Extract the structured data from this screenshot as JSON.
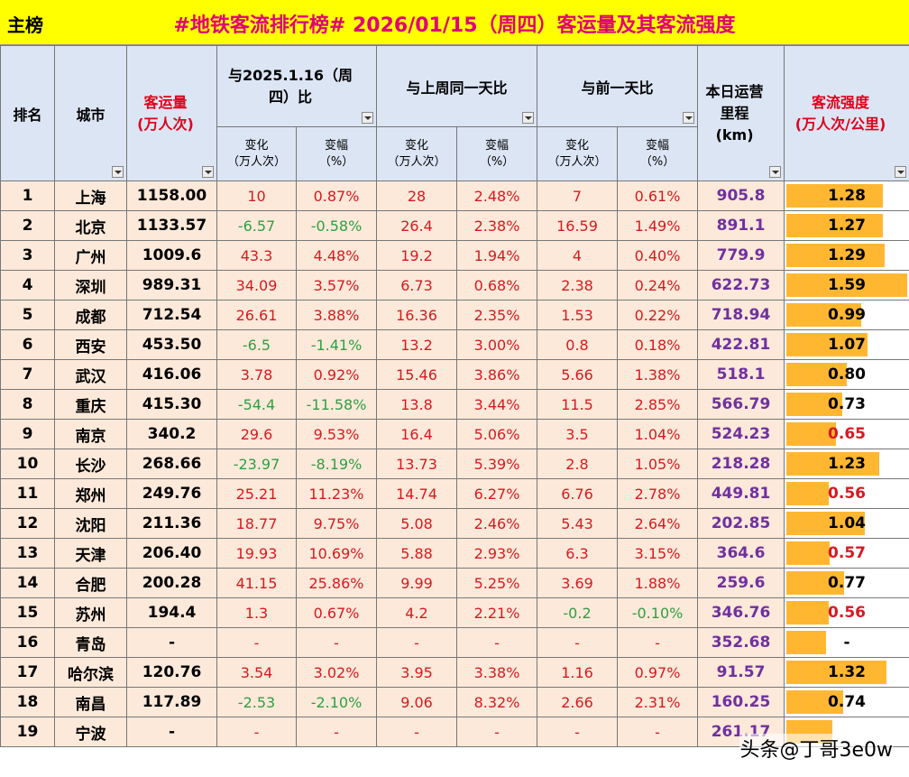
{
  "title_bar": {
    "label": "主榜",
    "title": "#地铁客流排行榜# 2026/01/15（周四）客运量及其客流强度"
  },
  "headers": {
    "rank": "排名",
    "city": "城市",
    "volume": "客运量\n(万人次)",
    "yoy": "与2025.1.16（周四）比",
    "wow": "与上周同一天比",
    "dod": "与前一天比",
    "mileage": "本日运营里程\n(km)",
    "intensity": "客流强度\n(万人次/公里)",
    "change": "变化\n（万人次）",
    "pct": "变幅\n（%）"
  },
  "colors": {
    "positive": "#d71920",
    "negative": "#2f9e44",
    "mileage": "#7030a0",
    "bar": "#ffb732",
    "row_bg": "#fde9d9",
    "header_bg": "#dce5f4",
    "title_bg": "#ffff00"
  },
  "rows": [
    {
      "rank": "1",
      "city": "上海",
      "volume": "1158.00",
      "yoy_chg": "10",
      "yoy_pct": "0.87%",
      "wow_chg": "28",
      "wow_pct": "2.48%",
      "dod_chg": "7",
      "dod_pct": "0.61%",
      "mileage": "905.8",
      "intensity": "1.28",
      "level": 0.8
    },
    {
      "rank": "2",
      "city": "北京",
      "volume": "1133.57",
      "yoy_chg": "-6.57",
      "yoy_pct": "-0.58%",
      "wow_chg": "26.4",
      "wow_pct": "2.38%",
      "dod_chg": "16.59",
      "dod_pct": "1.49%",
      "mileage": "891.1",
      "intensity": "1.27",
      "level": 0.8
    },
    {
      "rank": "3",
      "city": "广州",
      "volume": "1009.6",
      "yoy_chg": "43.3",
      "yoy_pct": "4.48%",
      "wow_chg": "19.2",
      "wow_pct": "1.94%",
      "dod_chg": "4",
      "dod_pct": "0.40%",
      "mileage": "779.9",
      "intensity": "1.29",
      "level": 0.81
    },
    {
      "rank": "4",
      "city": "深圳",
      "volume": "989.31",
      "yoy_chg": "34.09",
      "yoy_pct": "3.57%",
      "wow_chg": "6.73",
      "wow_pct": "0.68%",
      "dod_chg": "2.38",
      "dod_pct": "0.24%",
      "mileage": "622.73",
      "intensity": "1.59",
      "level": 1.0
    },
    {
      "rank": "5",
      "city": "成都",
      "volume": "712.54",
      "yoy_chg": "26.61",
      "yoy_pct": "3.88%",
      "wow_chg": "16.36",
      "wow_pct": "2.35%",
      "dod_chg": "1.53",
      "dod_pct": "0.22%",
      "mileage": "718.94",
      "intensity": "0.99",
      "level": 0.62
    },
    {
      "rank": "6",
      "city": "西安",
      "volume": "453.50",
      "yoy_chg": "-6.5",
      "yoy_pct": "-1.41%",
      "wow_chg": "13.2",
      "wow_pct": "3.00%",
      "dod_chg": "0.8",
      "dod_pct": "0.18%",
      "mileage": "422.81",
      "intensity": "1.07",
      "level": 0.67
    },
    {
      "rank": "7",
      "city": "武汉",
      "volume": "416.06",
      "yoy_chg": "3.78",
      "yoy_pct": "0.92%",
      "wow_chg": "15.46",
      "wow_pct": "3.86%",
      "dod_chg": "5.66",
      "dod_pct": "1.38%",
      "mileage": "518.1",
      "intensity": "0.80",
      "level": 0.5
    },
    {
      "rank": "8",
      "city": "重庆",
      "volume": "415.30",
      "yoy_chg": "-54.4",
      "yoy_pct": "-11.58%",
      "wow_chg": "13.8",
      "wow_pct": "3.44%",
      "dod_chg": "11.5",
      "dod_pct": "2.85%",
      "mileage": "566.79",
      "intensity": "0.73",
      "level": 0.46
    },
    {
      "rank": "9",
      "city": "南京",
      "volume": "340.2",
      "yoy_chg": "29.6",
      "yoy_pct": "9.53%",
      "wow_chg": "16.4",
      "wow_pct": "5.06%",
      "dod_chg": "3.5",
      "dod_pct": "1.04%",
      "mileage": "524.23",
      "intensity": "0.65",
      "level": 0.41
    },
    {
      "rank": "10",
      "city": "长沙",
      "volume": "268.66",
      "yoy_chg": "-23.97",
      "yoy_pct": "-8.19%",
      "wow_chg": "13.73",
      "wow_pct": "5.39%",
      "dod_chg": "2.8",
      "dod_pct": "1.05%",
      "mileage": "218.28",
      "intensity": "1.23",
      "level": 0.77
    },
    {
      "rank": "11",
      "city": "郑州",
      "volume": "249.76",
      "yoy_chg": "25.21",
      "yoy_pct": "11.23%",
      "wow_chg": "14.74",
      "wow_pct": "6.27%",
      "dod_chg": "6.76",
      "dod_pct": "2.78%",
      "mileage": "449.81",
      "intensity": "0.56",
      "level": 0.35
    },
    {
      "rank": "12",
      "city": "沈阳",
      "volume": "211.36",
      "yoy_chg": "18.77",
      "yoy_pct": "9.75%",
      "wow_chg": "5.08",
      "wow_pct": "2.46%",
      "dod_chg": "5.43",
      "dod_pct": "2.64%",
      "mileage": "202.85",
      "intensity": "1.04",
      "level": 0.65
    },
    {
      "rank": "13",
      "city": "天津",
      "volume": "206.40",
      "yoy_chg": "19.93",
      "yoy_pct": "10.69%",
      "wow_chg": "5.88",
      "wow_pct": "2.93%",
      "dod_chg": "6.3",
      "dod_pct": "3.15%",
      "mileage": "364.6",
      "intensity": "0.57",
      "level": 0.36
    },
    {
      "rank": "14",
      "city": "合肥",
      "volume": "200.28",
      "yoy_chg": "41.15",
      "yoy_pct": "25.86%",
      "wow_chg": "9.99",
      "wow_pct": "5.25%",
      "dod_chg": "3.69",
      "dod_pct": "1.88%",
      "mileage": "259.6",
      "intensity": "0.77",
      "level": 0.48
    },
    {
      "rank": "15",
      "city": "苏州",
      "volume": "194.4",
      "yoy_chg": "1.3",
      "yoy_pct": "0.67%",
      "wow_chg": "4.2",
      "wow_pct": "2.21%",
      "dod_chg": "-0.2",
      "dod_pct": "-0.10%",
      "mileage": "346.76",
      "intensity": "0.56",
      "level": 0.35
    },
    {
      "rank": "16",
      "city": "青岛",
      "volume": "-",
      "yoy_chg": "-",
      "yoy_pct": "-",
      "wow_chg": "-",
      "wow_pct": "-",
      "dod_chg": "-",
      "dod_pct": "-",
      "mileage": "352.68",
      "intensity": "-",
      "level": 0.33
    },
    {
      "rank": "17",
      "city": "哈尔滨",
      "volume": "120.76",
      "yoy_chg": "3.54",
      "yoy_pct": "3.02%",
      "wow_chg": "3.95",
      "wow_pct": "3.38%",
      "dod_chg": "1.16",
      "dod_pct": "0.97%",
      "mileage": "91.57",
      "intensity": "1.32",
      "level": 0.83
    },
    {
      "rank": "18",
      "city": "南昌",
      "volume": "117.89",
      "yoy_chg": "-2.53",
      "yoy_pct": "-2.10%",
      "wow_chg": "9.06",
      "wow_pct": "8.32%",
      "dod_chg": "2.66",
      "dod_pct": "2.31%",
      "mileage": "160.25",
      "intensity": "0.74",
      "level": 0.47
    },
    {
      "rank": "19",
      "city": "宁波",
      "volume": "-",
      "yoy_chg": "-",
      "yoy_pct": "-",
      "wow_chg": "-",
      "wow_pct": "-",
      "dod_chg": "-",
      "dod_pct": "-",
      "mileage": "261.17",
      "intensity": "",
      "level": 0.38
    }
  ],
  "watermark": "头条@丁哥3e0w"
}
